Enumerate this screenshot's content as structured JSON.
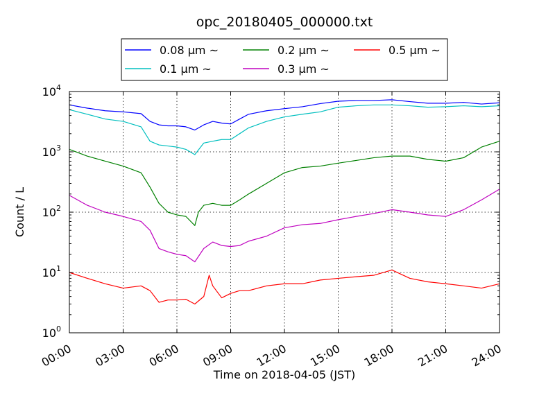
{
  "chart_data": {
    "type": "line",
    "title": "opc_20180405_000000.txt",
    "xlabel": "Time on 2018-04-05 (JST)",
    "ylabel": "Count / L",
    "y_scale": "log",
    "ylim": [
      1,
      10000
    ],
    "xlim": [
      "00:00",
      "24:00"
    ],
    "x_ticks": [
      "00:00",
      "03:00",
      "06:00",
      "09:00",
      "12:00",
      "15:00",
      "18:00",
      "21:00",
      "24:00"
    ],
    "y_ticks": [
      {
        "value": 1,
        "base": "10",
        "exp": "0"
      },
      {
        "value": 10,
        "base": "10",
        "exp": "1"
      },
      {
        "value": 100,
        "base": "10",
        "exp": "2"
      },
      {
        "value": 1000,
        "base": "10",
        "exp": "3"
      },
      {
        "value": 10000,
        "base": "10",
        "exp": "4"
      }
    ],
    "grid": true,
    "legend_position": "top-center",
    "series": [
      {
        "name": "0.08 μm ~",
        "color": "#0000ff",
        "x": [
          0,
          1,
          2,
          3,
          4,
          4.5,
          5,
          5.5,
          6,
          6.5,
          7,
          7.5,
          8,
          8.5,
          9,
          9.5,
          10,
          11,
          12,
          13,
          14,
          15,
          16,
          17,
          18,
          19,
          20,
          21,
          22,
          23,
          24
        ],
        "y": [
          6000,
          5300,
          4800,
          4600,
          4300,
          3200,
          2800,
          2700,
          2700,
          2600,
          2300,
          2800,
          3200,
          3000,
          2900,
          3500,
          4200,
          4800,
          5200,
          5600,
          6300,
          6900,
          7100,
          7100,
          7300,
          6800,
          6400,
          6400,
          6600,
          6200,
          6500
        ]
      },
      {
        "name": "0.1 μm ~",
        "color": "#00bfbf",
        "x": [
          0,
          1,
          2,
          3,
          4,
          4.5,
          5,
          5.5,
          6,
          6.5,
          7,
          7.5,
          8,
          8.5,
          9,
          9.5,
          10,
          11,
          12,
          13,
          14,
          15,
          16,
          17,
          18,
          19,
          20,
          21,
          22,
          23,
          24
        ],
        "y": [
          5000,
          4200,
          3500,
          3200,
          2600,
          1500,
          1300,
          1250,
          1200,
          1100,
          900,
          1400,
          1500,
          1600,
          1600,
          2000,
          2500,
          3200,
          3800,
          4200,
          4600,
          5500,
          5800,
          6000,
          6000,
          5800,
          5500,
          5600,
          5800,
          5600,
          5800
        ]
      },
      {
        "name": "0.2 μm ~",
        "color": "#008000",
        "x": [
          0,
          1,
          2,
          3,
          4,
          4.5,
          5,
          5.5,
          6,
          6.5,
          7,
          7.2,
          7.5,
          8,
          8.5,
          9,
          9.5,
          10,
          11,
          12,
          13,
          14,
          15,
          16,
          17,
          18,
          19,
          20,
          21,
          22,
          23,
          24
        ],
        "y": [
          1100,
          850,
          700,
          580,
          450,
          260,
          140,
          100,
          90,
          85,
          60,
          100,
          130,
          140,
          130,
          130,
          160,
          200,
          300,
          450,
          550,
          580,
          650,
          720,
          800,
          850,
          850,
          750,
          700,
          800,
          1200,
          1500
        ]
      },
      {
        "name": "0.3 μm ~",
        "color": "#bf00bf",
        "x": [
          0,
          1,
          2,
          3,
          4,
          4.5,
          5,
          5.5,
          6,
          6.5,
          7,
          7.5,
          8,
          8.5,
          9,
          9.5,
          10,
          11,
          12,
          13,
          14,
          15,
          16,
          17,
          18,
          19,
          20,
          21,
          22,
          23,
          24
        ],
        "y": [
          190,
          130,
          100,
          85,
          70,
          50,
          25,
          22,
          20,
          19,
          15,
          25,
          32,
          28,
          27,
          28,
          33,
          40,
          55,
          62,
          65,
          75,
          85,
          95,
          110,
          100,
          90,
          85,
          110,
          160,
          240
        ]
      },
      {
        "name": "0.5 μm ~",
        "color": "#ff0000",
        "x": [
          0,
          1,
          2,
          3,
          4,
          4.5,
          5,
          5.5,
          6,
          6.5,
          7,
          7.5,
          7.8,
          8,
          8.5,
          9,
          9.5,
          10,
          11,
          12,
          13,
          14,
          15,
          16,
          17,
          18,
          19,
          20,
          21,
          22,
          23,
          24
        ],
        "y": [
          10,
          8,
          6.5,
          5.5,
          6,
          5,
          3.2,
          3.5,
          3.5,
          3.6,
          3,
          4,
          9,
          6,
          3.8,
          4.5,
          5,
          5,
          6,
          6.5,
          6.5,
          7.5,
          8,
          8.5,
          9,
          11,
          8,
          7,
          6.5,
          6,
          5.5,
          6.5
        ]
      }
    ]
  }
}
